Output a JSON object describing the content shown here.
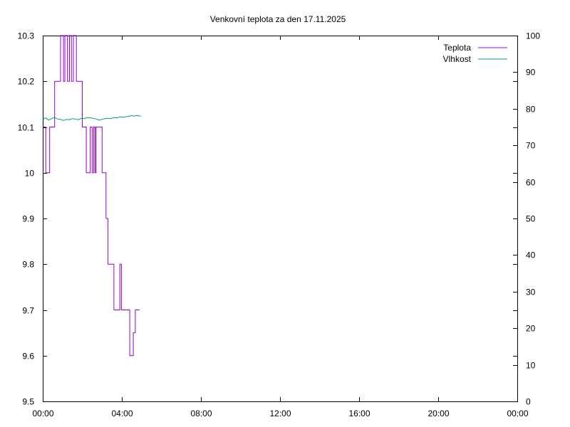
{
  "chart_data": {
    "type": "line",
    "title": "Venkovní teplota za den 17.11.2025",
    "x_unit": "hours",
    "xlim": [
      0,
      24
    ],
    "xticks": [
      0,
      4,
      8,
      12,
      16,
      20,
      24
    ],
    "xtick_labels": [
      "00:00",
      "04:00",
      "08:00",
      "12:00",
      "16:00",
      "20:00",
      "00:00"
    ],
    "ylim": [
      9.5,
      10.3
    ],
    "yticks": [
      9.5,
      9.6,
      9.7,
      9.8,
      9.9,
      10.0,
      10.1,
      10.2,
      10.3
    ],
    "ytick_labels": [
      "9.5",
      "9.6",
      "9.7",
      "9.8",
      "9.9",
      "10",
      "10.1",
      "10.2",
      "10.3"
    ],
    "y2lim": [
      0,
      100
    ],
    "y2ticks": [
      0,
      10,
      20,
      30,
      40,
      50,
      60,
      70,
      80,
      90,
      100
    ],
    "y2tick_labels": [
      "0",
      "10",
      "20",
      "30",
      "40",
      "50",
      "60",
      "70",
      "80",
      "90",
      "100"
    ],
    "grid": false,
    "legend_position": "top-right",
    "series": [
      {
        "name": "Teplota",
        "color": "#9400d3",
        "axis": "left",
        "step": true,
        "points": [
          [
            0.0,
            10.1
          ],
          [
            0.15,
            10.0
          ],
          [
            0.35,
            10.1
          ],
          [
            0.6,
            10.2
          ],
          [
            0.9,
            10.3
          ],
          [
            1.05,
            10.2
          ],
          [
            1.12,
            10.3
          ],
          [
            1.25,
            10.2
          ],
          [
            1.35,
            10.3
          ],
          [
            1.45,
            10.2
          ],
          [
            1.55,
            10.3
          ],
          [
            1.7,
            10.2
          ],
          [
            2.0,
            10.1
          ],
          [
            2.2,
            10.0
          ],
          [
            2.4,
            10.1
          ],
          [
            2.5,
            10.0
          ],
          [
            2.58,
            10.1
          ],
          [
            2.65,
            10.0
          ],
          [
            2.7,
            10.1
          ],
          [
            3.0,
            10.0
          ],
          [
            3.2,
            9.9
          ],
          [
            3.3,
            9.8
          ],
          [
            3.6,
            9.7
          ],
          [
            3.9,
            9.8
          ],
          [
            3.98,
            9.7
          ],
          [
            4.4,
            9.6
          ],
          [
            4.58,
            9.65
          ],
          [
            4.68,
            9.7
          ],
          [
            4.9,
            9.7
          ]
        ]
      },
      {
        "name": "Vlhkost",
        "color": "#009e73",
        "axis": "right",
        "step": false,
        "points": [
          [
            0.0,
            77.0
          ],
          [
            0.15,
            77.5
          ],
          [
            0.3,
            76.9
          ],
          [
            0.45,
            77.3
          ],
          [
            0.6,
            77.6
          ],
          [
            0.75,
            77.2
          ],
          [
            0.9,
            77.1
          ],
          [
            1.05,
            76.8
          ],
          [
            1.2,
            77.1
          ],
          [
            1.35,
            77.0
          ],
          [
            1.5,
            77.3
          ],
          [
            1.65,
            77.2
          ],
          [
            1.8,
            77.0
          ],
          [
            1.95,
            77.4
          ],
          [
            2.1,
            77.3
          ],
          [
            2.25,
            77.6
          ],
          [
            2.4,
            77.5
          ],
          [
            2.55,
            77.4
          ],
          [
            2.7,
            77.2
          ],
          [
            2.85,
            76.9
          ],
          [
            3.0,
            77.1
          ],
          [
            3.15,
            77.3
          ],
          [
            3.3,
            77.4
          ],
          [
            3.45,
            77.3
          ],
          [
            3.6,
            77.6
          ],
          [
            3.75,
            77.5
          ],
          [
            3.9,
            77.8
          ],
          [
            4.05,
            77.7
          ],
          [
            4.2,
            77.8
          ],
          [
            4.35,
            78.0
          ],
          [
            4.5,
            78.1
          ],
          [
            4.65,
            78.0
          ],
          [
            4.8,
            78.2
          ],
          [
            4.95,
            77.9
          ]
        ]
      }
    ]
  }
}
